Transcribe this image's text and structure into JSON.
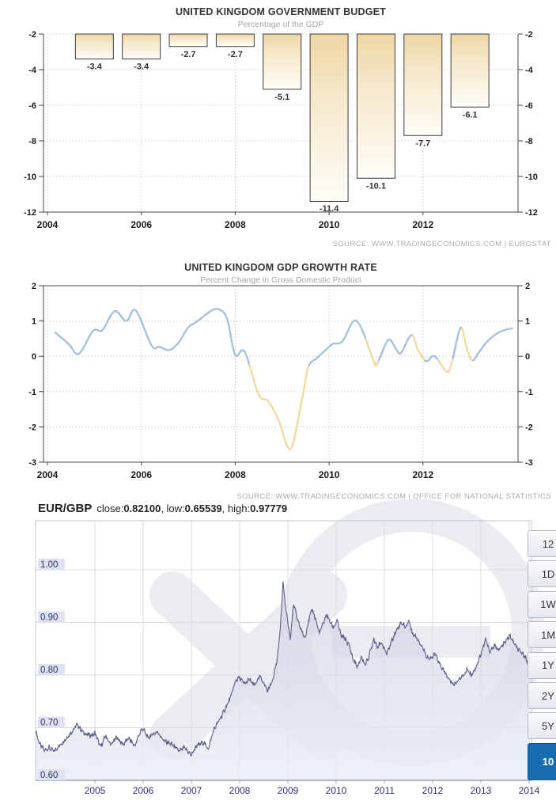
{
  "chart_data": [
    {
      "id": "budget",
      "type": "bar",
      "title": "UNITED KINGDOM GOVERNMENT BUDGET",
      "subtitle": "Percentage of the GDP",
      "source": "SOURCE:  WWW.TRADINGECONOMICS.COM  |  EUROSTAT",
      "categories": [
        2005,
        2006,
        2007,
        2008,
        2009,
        2010,
        2011,
        2012,
        2013
      ],
      "values": [
        -3.4,
        -3.4,
        -2.7,
        -2.7,
        -5.1,
        -11.4,
        -10.1,
        -7.7,
        -6.1
      ],
      "bar_labels": [
        "-3.4",
        "-3.4",
        "-2.7",
        "-2.7",
        "-5.1",
        "-11.4",
        "-10.1",
        "-7.7",
        "-6.1"
      ],
      "ylim": [
        -12,
        -2
      ],
      "yticks": [
        -2,
        -4,
        -6,
        -8,
        -10,
        -12
      ],
      "xticks": [
        2004,
        2006,
        2008,
        2010,
        2012
      ],
      "xlim": [
        2004,
        2014
      ],
      "grid": true,
      "colors": {
        "bar_top": "#eed6a3",
        "bar_mid": "#f5e7c9",
        "bar_bottom": "#fefdf8",
        "bar_border": "#3c3c3c",
        "axis": "#444444",
        "gridline": "#c9c9c9",
        "tick_text": "#1a1a1a",
        "title": "#333333",
        "subtitle": "#a5a5a5",
        "source": "#aaaaaa"
      }
    },
    {
      "id": "gdp_growth",
      "type": "line",
      "title": "UNITED KINGDOM GDP GROWTH RATE",
      "subtitle": "Percent Change in Gross Domestic Product",
      "source": "SOURCE:  WWW.TRADINGECONOMICS.COM  |  OFFICE  FOR  NATIONAL  STATISTICS",
      "xlabel": "",
      "ylabel": "",
      "ylim": [
        -3,
        2
      ],
      "yticks": [
        2,
        1,
        0,
        -1,
        -2,
        -3
      ],
      "xticks": [
        2004,
        2006,
        2008,
        2010,
        2012
      ],
      "xlim": [
        2004,
        2014
      ],
      "grid": true,
      "points": [
        [
          2004.17,
          0.67
        ],
        [
          2004.45,
          0.35
        ],
        [
          2004.67,
          0.07
        ],
        [
          2004.97,
          0.72
        ],
        [
          2005.17,
          0.74
        ],
        [
          2005.43,
          1.28
        ],
        [
          2005.68,
          1.0
        ],
        [
          2005.88,
          1.3
        ],
        [
          2006.22,
          0.3
        ],
        [
          2006.38,
          0.27
        ],
        [
          2006.6,
          0.18
        ],
        [
          2006.8,
          0.4
        ],
        [
          2007.0,
          0.82
        ],
        [
          2007.17,
          0.97
        ],
        [
          2007.5,
          1.3
        ],
        [
          2007.67,
          1.32
        ],
        [
          2007.83,
          1.05
        ],
        [
          2008.0,
          0.04
        ],
        [
          2008.2,
          0.13
        ],
        [
          2008.5,
          -1.08
        ],
        [
          2008.7,
          -1.27
        ],
        [
          2008.92,
          -1.79
        ],
        [
          2009.18,
          -2.62
        ],
        [
          2009.42,
          -1.23
        ],
        [
          2009.56,
          -0.3
        ],
        [
          2009.75,
          -0.04
        ],
        [
          2009.92,
          0.17
        ],
        [
          2010.08,
          0.35
        ],
        [
          2010.28,
          0.42
        ],
        [
          2010.52,
          0.99
        ],
        [
          2010.69,
          0.79
        ],
        [
          2010.95,
          -0.13
        ],
        [
          2011.02,
          -0.22
        ],
        [
          2011.26,
          0.46
        ],
        [
          2011.43,
          0.2
        ],
        [
          2011.53,
          0.09
        ],
        [
          2011.75,
          0.6
        ],
        [
          2011.89,
          0.2
        ],
        [
          2012.02,
          -0.09
        ],
        [
          2012.1,
          -0.13
        ],
        [
          2012.25,
          0.0
        ],
        [
          2012.5,
          -0.43
        ],
        [
          2012.6,
          -0.26
        ],
        [
          2012.8,
          0.8
        ],
        [
          2012.93,
          0.24
        ],
        [
          2013.05,
          -0.12
        ],
        [
          2013.2,
          0.13
        ],
        [
          2013.4,
          0.46
        ],
        [
          2013.65,
          0.7
        ],
        [
          2013.9,
          0.79
        ]
      ],
      "fall_ranges": [
        [
          2008.28,
          2009.56
        ],
        [
          2010.77,
          2011.04
        ],
        [
          2011.77,
          2012.04
        ],
        [
          2012.3,
          2012.62
        ],
        [
          2012.82,
          2013.06
        ]
      ],
      "colors": {
        "rise": "#a7c1dd",
        "fall": "#f3d9a1",
        "axis": "#444444",
        "gridline": "#c9c9c9",
        "tick_text": "#1a1a1a",
        "title": "#333333",
        "subtitle": "#a5a5a5",
        "source": "#aaaaaa"
      }
    },
    {
      "id": "eurgbp",
      "type": "area",
      "header": {
        "symbol": "EUR/GBP",
        "close_label": "close:",
        "close": "0.82100",
        "sep1": ", ",
        "low_label": "low:",
        "low": "0.65539",
        "sep2": ", ",
        "high_label": "high:",
        "high": "0.97779"
      },
      "yticks": [
        "1.00",
        "0.90",
        "0.80",
        "0.70",
        "0.60"
      ],
      "ytick_values": [
        1.0,
        0.9,
        0.8,
        0.7,
        0.6
      ],
      "xticks": [
        "2005",
        "2006",
        "2007",
        "2008",
        "2009",
        "2010",
        "2011",
        "2012",
        "2013",
        "2014"
      ],
      "xtick_values": [
        2005,
        2006,
        2007,
        2008,
        2009,
        2010,
        2011,
        2012,
        2013,
        2014
      ],
      "xlim": [
        2003.77,
        2014.05
      ],
      "ylim": [
        0.6,
        1.093
      ],
      "grid": true,
      "range_buttons": [
        {
          "label": "12",
          "selected": false
        },
        {
          "label": "1D",
          "selected": false
        },
        {
          "label": "1W",
          "selected": false
        },
        {
          "label": "1M",
          "selected": false
        },
        {
          "label": "1Y",
          "selected": false
        },
        {
          "label": "2Y",
          "selected": false
        },
        {
          "label": "5Y",
          "selected": false
        },
        {
          "label": "10",
          "selected": true
        }
      ],
      "points": [
        [
          2003.78,
          0.692
        ],
        [
          2003.85,
          0.67
        ],
        [
          2003.95,
          0.657
        ],
        [
          2004.05,
          0.662
        ],
        [
          2004.15,
          0.655
        ],
        [
          2004.33,
          0.672
        ],
        [
          2004.5,
          0.69
        ],
        [
          2004.63,
          0.706
        ],
        [
          2004.75,
          0.692
        ],
        [
          2004.83,
          0.687
        ],
        [
          2004.95,
          0.685
        ],
        [
          2005.0,
          0.69
        ],
        [
          2005.12,
          0.663
        ],
        [
          2005.22,
          0.685
        ],
        [
          2005.33,
          0.667
        ],
        [
          2005.45,
          0.682
        ],
        [
          2005.58,
          0.668
        ],
        [
          2005.7,
          0.68
        ],
        [
          2005.83,
          0.665
        ],
        [
          2005.95,
          0.695
        ],
        [
          2006.0,
          0.698
        ],
        [
          2006.1,
          0.68
        ],
        [
          2006.2,
          0.688
        ],
        [
          2006.3,
          0.692
        ],
        [
          2006.43,
          0.675
        ],
        [
          2006.6,
          0.668
        ],
        [
          2006.75,
          0.655
        ],
        [
          2006.85,
          0.662
        ],
        [
          2007.0,
          0.648
        ],
        [
          2007.1,
          0.665
        ],
        [
          2007.25,
          0.672
        ],
        [
          2007.35,
          0.66
        ],
        [
          2007.46,
          0.695
        ],
        [
          2007.55,
          0.71
        ],
        [
          2007.67,
          0.73
        ],
        [
          2007.8,
          0.755
        ],
        [
          2007.92,
          0.79
        ],
        [
          2008.0,
          0.795
        ],
        [
          2008.1,
          0.783
        ],
        [
          2008.2,
          0.792
        ],
        [
          2008.3,
          0.78
        ],
        [
          2008.42,
          0.797
        ],
        [
          2008.5,
          0.785
        ],
        [
          2008.58,
          0.77
        ],
        [
          2008.68,
          0.79
        ],
        [
          2008.78,
          0.83
        ],
        [
          2008.85,
          0.895
        ],
        [
          2008.9,
          0.978
        ],
        [
          2008.95,
          0.93
        ],
        [
          2009.0,
          0.9
        ],
        [
          2009.05,
          0.87
        ],
        [
          2009.12,
          0.935
        ],
        [
          2009.2,
          0.905
        ],
        [
          2009.28,
          0.885
        ],
        [
          2009.35,
          0.87
        ],
        [
          2009.42,
          0.9
        ],
        [
          2009.5,
          0.925
        ],
        [
          2009.58,
          0.905
        ],
        [
          2009.65,
          0.88
        ],
        [
          2009.72,
          0.895
        ],
        [
          2009.8,
          0.915
        ],
        [
          2009.88,
          0.9
        ],
        [
          2009.95,
          0.89
        ],
        [
          2010.02,
          0.905
        ],
        [
          2010.1,
          0.875
        ],
        [
          2010.18,
          0.87
        ],
        [
          2010.28,
          0.855
        ],
        [
          2010.35,
          0.83
        ],
        [
          2010.45,
          0.815
        ],
        [
          2010.52,
          0.835
        ],
        [
          2010.6,
          0.82
        ],
        [
          2010.68,
          0.835
        ],
        [
          2010.78,
          0.87
        ],
        [
          2010.85,
          0.855
        ],
        [
          2010.95,
          0.86
        ],
        [
          2011.05,
          0.84
        ],
        [
          2011.15,
          0.865
        ],
        [
          2011.25,
          0.885
        ],
        [
          2011.35,
          0.9
        ],
        [
          2011.45,
          0.89
        ],
        [
          2011.5,
          0.905
        ],
        [
          2011.58,
          0.88
        ],
        [
          2011.68,
          0.87
        ],
        [
          2011.78,
          0.855
        ],
        [
          2011.88,
          0.835
        ],
        [
          2011.95,
          0.83
        ],
        [
          2012.05,
          0.84
        ],
        [
          2012.15,
          0.82
        ],
        [
          2012.25,
          0.805
        ],
        [
          2012.35,
          0.79
        ],
        [
          2012.45,
          0.782
        ],
        [
          2012.55,
          0.793
        ],
        [
          2012.65,
          0.8
        ],
        [
          2012.72,
          0.812
        ],
        [
          2012.8,
          0.8
        ],
        [
          2012.9,
          0.815
        ],
        [
          2013.0,
          0.84
        ],
        [
          2013.1,
          0.868
        ],
        [
          2013.18,
          0.845
        ],
        [
          2013.28,
          0.855
        ],
        [
          2013.38,
          0.848
        ],
        [
          2013.5,
          0.862
        ],
        [
          2013.6,
          0.875
        ],
        [
          2013.7,
          0.858
        ],
        [
          2013.8,
          0.845
        ],
        [
          2013.9,
          0.838
        ],
        [
          2013.98,
          0.821
        ]
      ],
      "colors": {
        "line": "#5a6186",
        "fill_top": "#c9cde0",
        "fill_bottom": "#eceef6",
        "gridline": "#d9dbe4",
        "border": "#c2c5d6",
        "bottom_axis": "#9aa0bc",
        "chip_bg": "#dfe2f2",
        "chip_text": "#2d3366",
        "year_text": "#2e3470",
        "button_selected_bg": "#1a6cb0",
        "watermark": "#ebecf1"
      }
    }
  ]
}
